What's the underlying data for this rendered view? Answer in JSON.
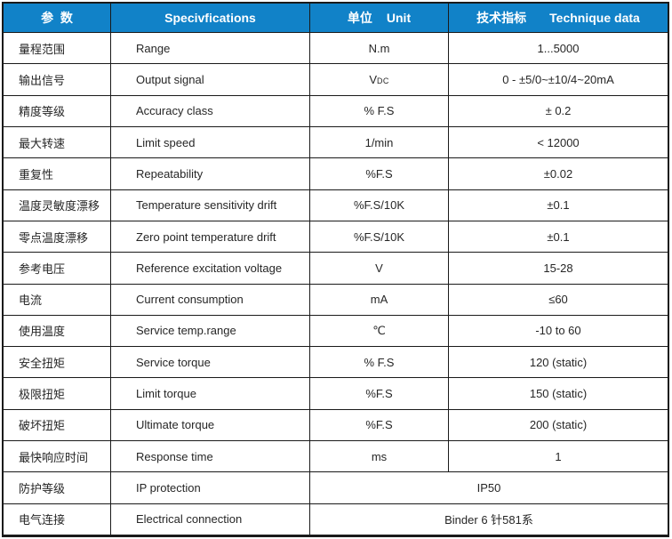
{
  "colors": {
    "header_bg": "#1182C8",
    "header_text": "#FFFFFF",
    "grid_line": "#1A1A1A",
    "body_text": "#262626",
    "page_bg": "#FFFFFF"
  },
  "header": {
    "param_cn": "参  数",
    "spec_en": "Specivfications",
    "unit_cn": "单位",
    "unit_en": "Unit",
    "tech_cn": "技术指标",
    "tech_en": "Technique data"
  },
  "rows": [
    {
      "cn": "量程范围",
      "en": "Range",
      "unit": "N.m",
      "value": "1...5000"
    },
    {
      "cn": "输出信号",
      "en": "Output signal",
      "unit": "V",
      "unit_sub": "DC",
      "value": "0 - ±5/0~±10/4~20mA"
    },
    {
      "cn": "精度等级",
      "en": "Accuracy class",
      "unit": "% F.S",
      "value": "± 0.2"
    },
    {
      "cn": "最大转速",
      "en": "Limit speed",
      "unit": "1/min",
      "value": "< 12000"
    },
    {
      "cn": "重复性",
      "en": "Repeatability",
      "unit": "%F.S",
      "value": "±0.02"
    },
    {
      "cn": "温度灵敏度漂移",
      "en": "Temperature sensitivity drift",
      "unit": "%F.S/10K",
      "value": "±0.1"
    },
    {
      "cn": "零点温度漂移",
      "en": "Zero point temperature drift",
      "unit": "%F.S/10K",
      "value": "±0.1"
    },
    {
      "cn": "参考电压",
      "en": "Reference excitation voltage",
      "unit": "V",
      "value": "15-28"
    },
    {
      "cn": "电流",
      "en": "Current consumption",
      "unit": "mA",
      "value": "≤60"
    },
    {
      "cn": "使用温度",
      "en": "Service temp.range",
      "unit": "℃",
      "value": "-10 to 60"
    },
    {
      "cn": "安全扭矩",
      "en": "Service torque",
      "unit": "% F.S",
      "value": "120 (static)"
    },
    {
      "cn": "极限扭矩",
      "en": "Limit torque",
      "unit": "%F.S",
      "value": "150 (static)"
    },
    {
      "cn": "破坏扭矩",
      "en": "Ultimate torque",
      "unit": "%F.S",
      "value": "200 (static)"
    },
    {
      "cn": "最快响应时间",
      "en": "Response time",
      "unit": "ms",
      "value": "1"
    },
    {
      "cn": "防护等级",
      "en": "IP protection",
      "merged": true,
      "value": "IP50"
    },
    {
      "cn": "电气连接",
      "en": "Electrical connection",
      "merged": true,
      "value": "Binder 6 针581系"
    }
  ]
}
